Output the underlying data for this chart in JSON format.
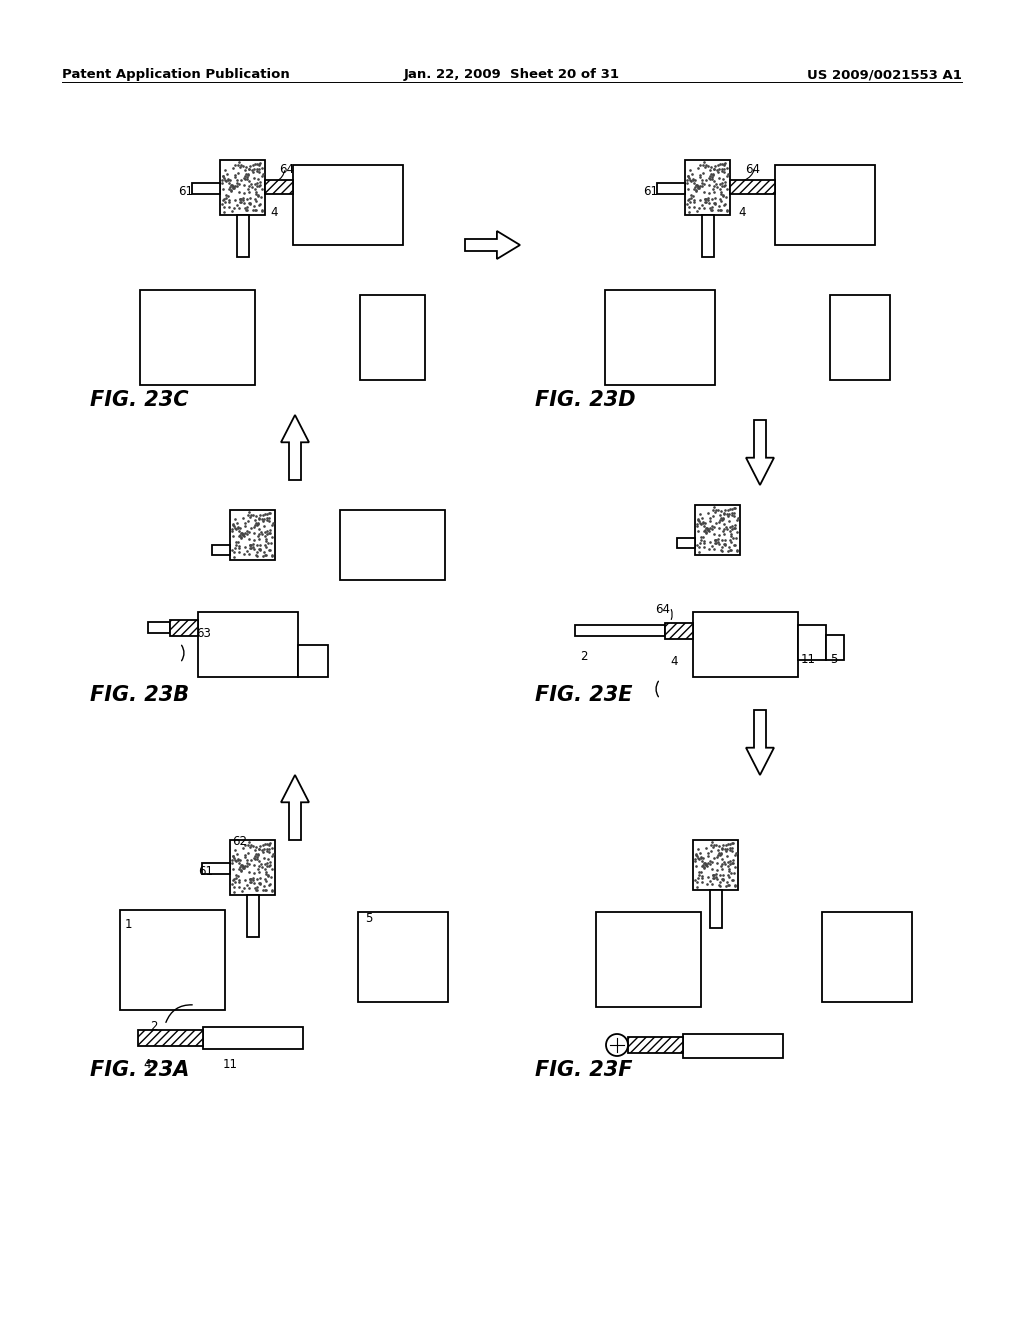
{
  "title_left": "Patent Application Publication",
  "title_center": "Jan. 22, 2009  Sheet 20 of 31",
  "title_right": "US 2009/0021553 A1",
  "background": "#ffffff",
  "header_size": 9.5,
  "fig_label_size": 15,
  "annot_size": 8.5
}
